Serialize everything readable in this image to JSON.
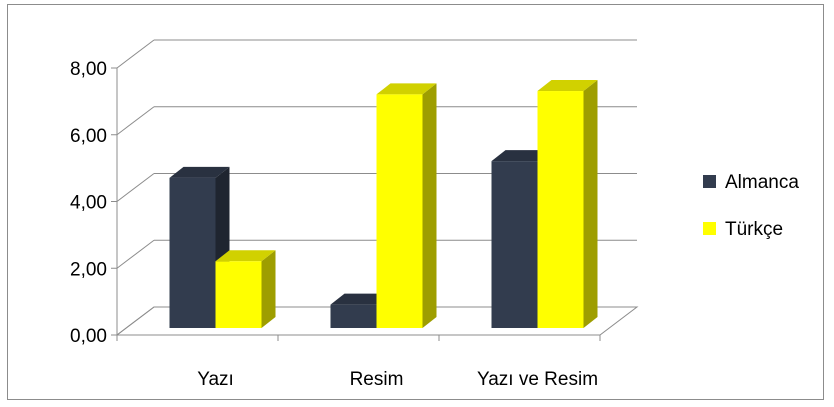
{
  "chart_data": {
    "type": "bar",
    "categories": [
      "Yazı",
      "Resim",
      "Yazı ve Resim"
    ],
    "series": [
      {
        "name": "Almanca",
        "values": [
          4.5,
          0.7,
          5.0
        ],
        "color": "#323c4e"
      },
      {
        "name": "Türkçe",
        "values": [
          2.0,
          7.0,
          7.1
        ],
        "color": "#ffff00"
      }
    ],
    "y_ticks": [
      "0,00",
      "2,00",
      "4,00",
      "6,00",
      "8,00"
    ],
    "ylim": [
      0,
      8
    ],
    "grid": true,
    "legend_position": "right",
    "style": "3d-column"
  }
}
